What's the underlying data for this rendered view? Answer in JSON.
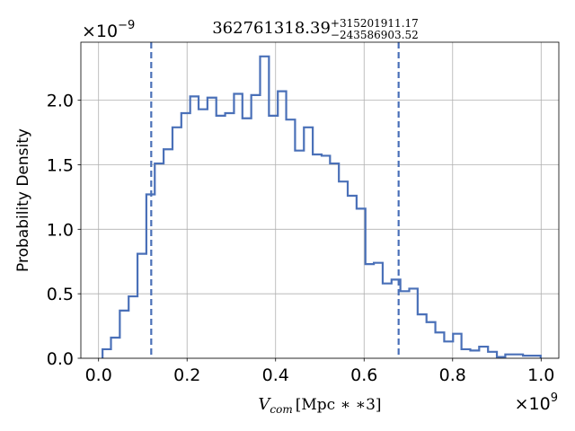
{
  "chart_data": {
    "type": "histogram",
    "title": {
      "base": "362761318.39",
      "sup": "+315201911.17",
      "sub": "−243586903.52"
    },
    "xlabel": {
      "var": "V",
      "sub": "com",
      "unit": "[Mpc ∗ ∗3]"
    },
    "ylabel": "Probability Density",
    "x_offset_label": {
      "base": "×10",
      "exp": "9"
    },
    "y_offset_label": {
      "base": "×10",
      "exp": "−9"
    },
    "x_scale": 1000000000.0,
    "y_scale": 1e-09,
    "xlim": [
      -0.04,
      1.04
    ],
    "ylim": [
      0.0,
      2.45
    ],
    "xticks": [
      0.0,
      0.2,
      0.4,
      0.6,
      0.8,
      1.0
    ],
    "xtick_labels": [
      "0.0",
      "0.2",
      "0.4",
      "0.6",
      "0.8",
      "1.0"
    ],
    "yticks": [
      0.0,
      0.5,
      1.0,
      1.5,
      2.0
    ],
    "ytick_labels": [
      "0.0",
      "0.5",
      "1.0",
      "1.5",
      "2.0"
    ],
    "grid": true,
    "line_color": "#4a70b8",
    "bin_edges": [
      0.009,
      0.028,
      0.048,
      0.068,
      0.088,
      0.108,
      0.127,
      0.147,
      0.167,
      0.187,
      0.207,
      0.226,
      0.246,
      0.266,
      0.286,
      0.306,
      0.325,
      0.345,
      0.365,
      0.385,
      0.405,
      0.424,
      0.444,
      0.464,
      0.484,
      0.504,
      0.523,
      0.543,
      0.563,
      0.583,
      0.603,
      0.622,
      0.642,
      0.662,
      0.682,
      0.702,
      0.721,
      0.741,
      0.761,
      0.781,
      0.801,
      0.82,
      0.84,
      0.86,
      0.88,
      0.9,
      0.919,
      0.939,
      0.959,
      0.979,
      0.999
    ],
    "densities": [
      0.07,
      0.16,
      0.37,
      0.48,
      0.81,
      1.27,
      1.51,
      1.62,
      1.79,
      1.9,
      2.03,
      1.93,
      2.02,
      1.88,
      1.9,
      2.05,
      1.86,
      2.04,
      2.34,
      1.88,
      2.07,
      1.85,
      1.61,
      1.79,
      1.58,
      1.57,
      1.51,
      1.37,
      1.26,
      1.16,
      0.73,
      0.74,
      0.58,
      0.61,
      0.52,
      0.54,
      0.34,
      0.28,
      0.2,
      0.13,
      0.19,
      0.07,
      0.06,
      0.09,
      0.05,
      0.01,
      0.03,
      0.03,
      0.02,
      0.02
    ],
    "credible_interval": [
      0.119,
      0.678
    ]
  }
}
